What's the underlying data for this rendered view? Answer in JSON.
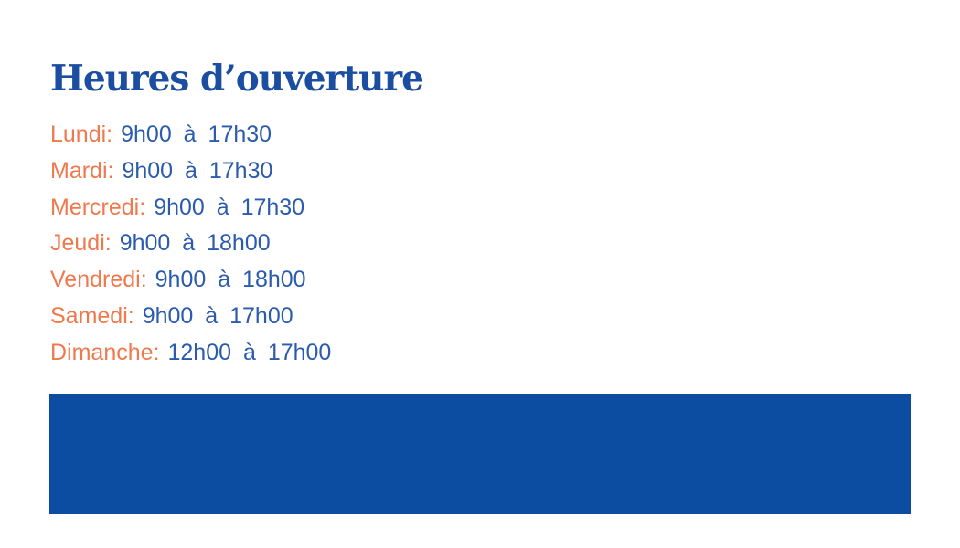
{
  "title": "Heures d’ouverture",
  "hours": {
    "rows": [
      {
        "day": "Lundi:",
        "hours": "9h00 à 17h30"
      },
      {
        "day": "Mardi:",
        "hours": "9h00 à 17h30"
      },
      {
        "day": "Mercredi:",
        "hours": "9h00 à 17h30"
      },
      {
        "day": "Jeudi:",
        "hours": "9h00 à 18h00"
      },
      {
        "day": "Vendredi:",
        "hours": "9h00 à 18h00"
      },
      {
        "day": "Samedi:",
        "hours": "9h00 à 17h00"
      },
      {
        "day": "Dimanche:",
        "hours": "12h00 à 17h00"
      }
    ]
  },
  "colors": {
    "title_blue": "#1B4DA0",
    "hours_blue": "#2B5BAD",
    "day_orange": "#F0784D",
    "banner_blue": "#0C4DA1",
    "background": "#FFFFFF"
  }
}
